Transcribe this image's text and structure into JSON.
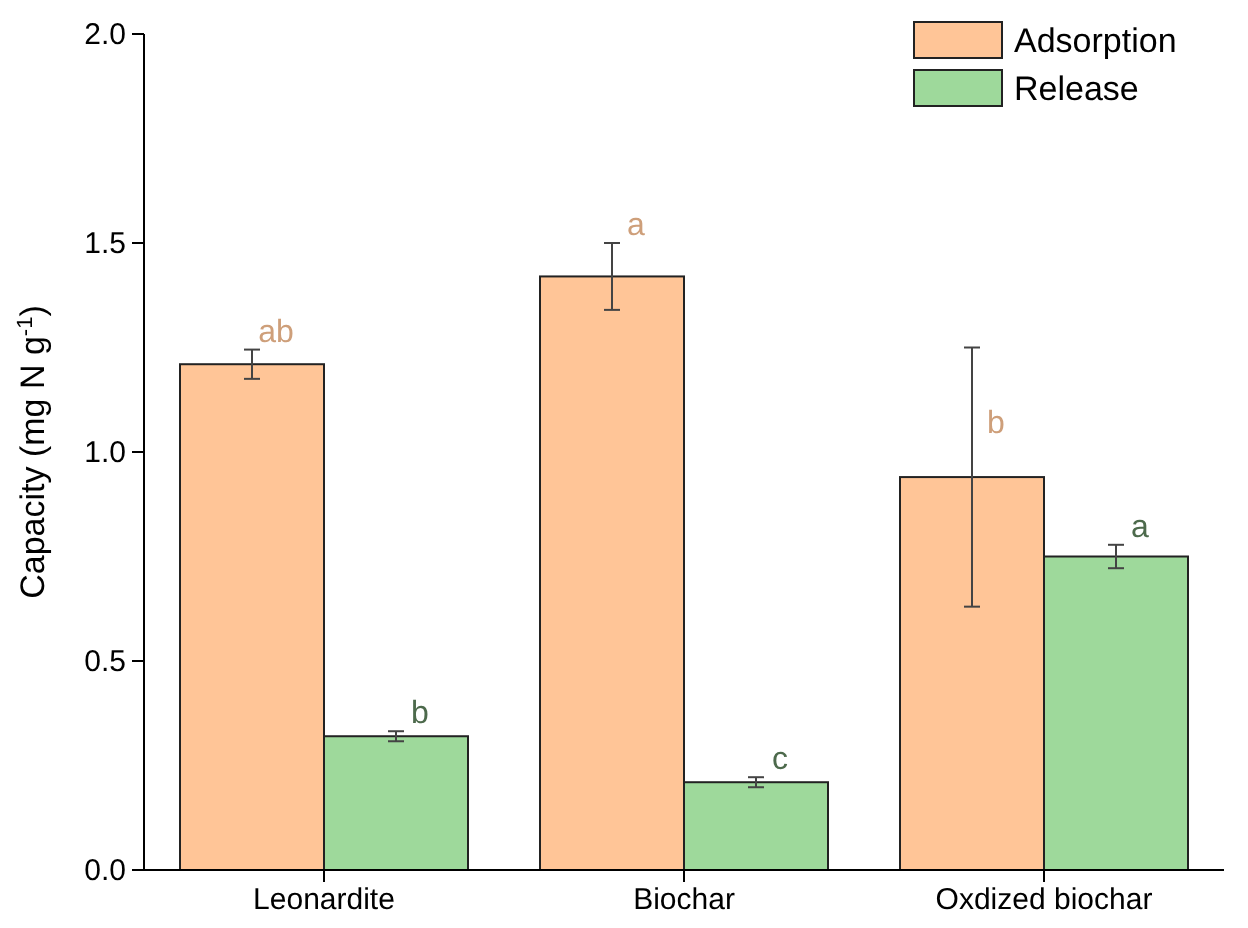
{
  "chart_data": {
    "type": "bar",
    "ylabel": "Capacity (mg N g$^{-1}$)",
    "categories": [
      "Leonardite",
      "Biochar",
      "Oxdized biochar"
    ],
    "series": [
      {
        "name": "Adsorption",
        "color": "#ffc597",
        "values": [
          1.21,
          1.42,
          0.94
        ],
        "errors": [
          0.035,
          0.08,
          0.31
        ],
        "value_labels": [
          "ab",
          "a",
          "b"
        ]
      },
      {
        "name": "Release",
        "color": "#9ed99b",
        "values": [
          0.32,
          0.21,
          0.75
        ],
        "errors": [
          0.012,
          0.012,
          0.028
        ],
        "value_labels": [
          "b",
          "c",
          "a"
        ]
      }
    ],
    "ylim": [
      0,
      2
    ],
    "yticks": [
      {
        "value": 0,
        "label": "0.0"
      },
      {
        "value": 0.5,
        "label": "0.5"
      },
      {
        "value": 1,
        "label": "1.0"
      },
      {
        "value": 1.5,
        "label": "1.5"
      },
      {
        "value": 2,
        "label": "2.0"
      }
    ],
    "legend": "top right"
  }
}
